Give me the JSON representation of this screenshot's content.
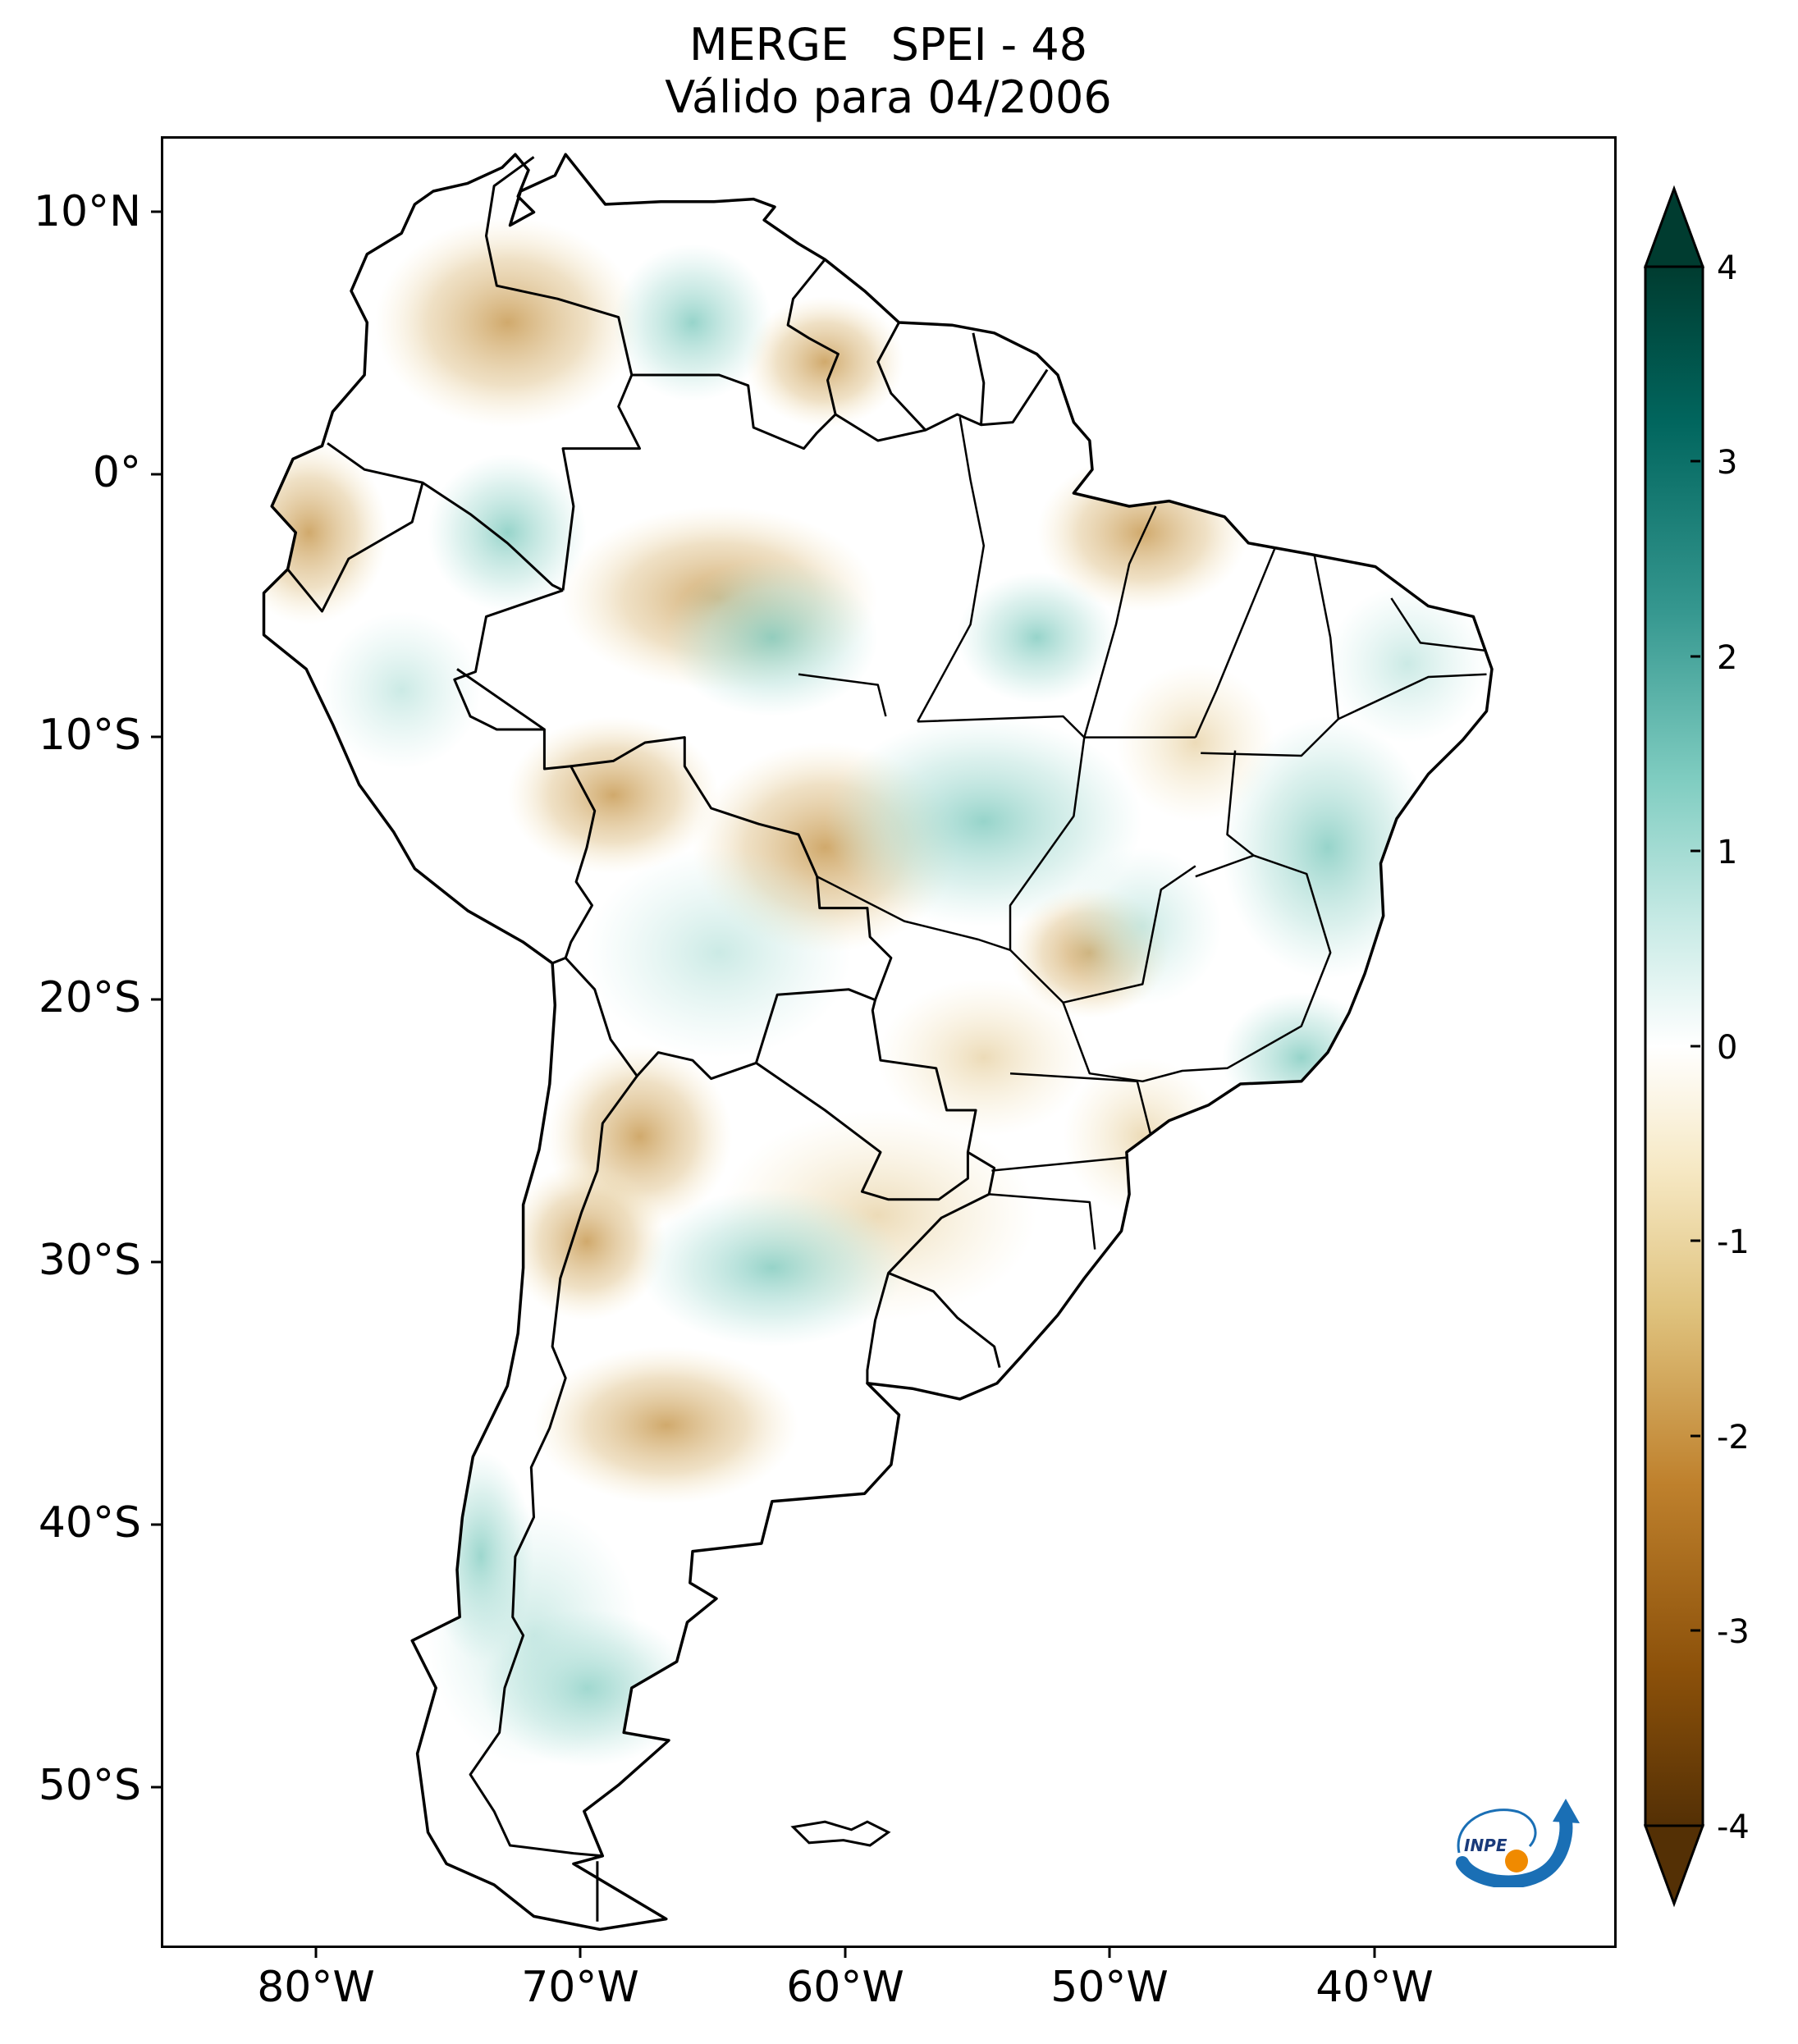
{
  "title": {
    "line1": "MERGE   SPEI - 48",
    "line2": "Válido para 04/2006"
  },
  "map": {
    "region": "South America",
    "lat_labels": [
      "10°N",
      "0°",
      "10°S",
      "20°S",
      "30°S",
      "40°S",
      "50°S"
    ],
    "lat_values": [
      10,
      0,
      -10,
      -20,
      -30,
      -40,
      -50
    ],
    "lon_labels": [
      "80°W",
      "70°W",
      "60°W",
      "50°W",
      "40°W"
    ],
    "lon_values": [
      -80,
      -70,
      -60,
      -50,
      -40
    ],
    "lon_range": [
      -85,
      -30
    ],
    "lat_range": [
      -56,
      13
    ]
  },
  "colorbar": {
    "tick_labels": [
      "4",
      "3",
      "2",
      "1",
      "0",
      "-1",
      "-2",
      "-3",
      "-4"
    ],
    "tick_values": [
      4,
      3,
      2,
      1,
      0,
      -1,
      -2,
      -3,
      -4
    ],
    "range": [
      -4,
      4
    ],
    "extend": "both",
    "colors": {
      "dry_extreme": "#543005",
      "dry_strong": "#8c510a",
      "dry_moderate": "#bf812d",
      "dry_mild": "#dfc27d",
      "dry_light": "#f6e8c3",
      "neutral": "#ffffff",
      "wet_light": "#c7eae5",
      "wet_mild": "#80cdc1",
      "wet_moderate": "#35978f",
      "wet_strong": "#01665e",
      "wet_extreme": "#003c30"
    }
  },
  "logo": {
    "text": "INPE"
  }
}
